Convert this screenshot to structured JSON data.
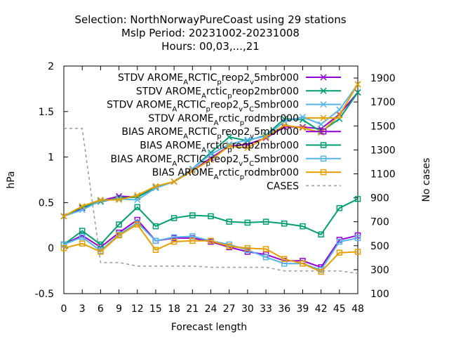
{
  "chart_data": {
    "type": "line",
    "title_lines": [
      "Selection: NorthNorwayPureCoast using    29 stations",
      "Mslp   Period: 20231002-20231008",
      "Hours:  00,03,...,21"
    ],
    "xlabel": "Forecast length",
    "ylabel": "hPa",
    "y2label": "No cases",
    "x": [
      0,
      3,
      6,
      9,
      12,
      15,
      18,
      21,
      24,
      27,
      30,
      33,
      36,
      39,
      42,
      45,
      48
    ],
    "xlim": [
      0,
      48
    ],
    "ylim": [
      -0.5,
      2
    ],
    "y2lim": [
      100,
      2000
    ],
    "yticks": [
      "-0.5",
      "0",
      "0.5",
      "1",
      "1.5",
      "2"
    ],
    "y2ticks": [
      "100",
      "300",
      "500",
      "700",
      "900",
      "1100",
      "1300",
      "1500",
      "1700",
      "1900"
    ],
    "xticks": [
      "0",
      "3",
      "6",
      "9",
      "12",
      "15",
      "18",
      "21",
      "24",
      "27",
      "30",
      "33",
      "36",
      "39",
      "42",
      "45",
      "48"
    ],
    "legend_position": "top-right",
    "series": [
      {
        "name": "STDV AROME_ARCTIC_preop2_v5mbr000",
        "color": "#9400d3",
        "marker": "x",
        "axis": "y1",
        "values": [
          0.35,
          0.44,
          0.52,
          0.57,
          0.56,
          0.67,
          0.73,
          0.85,
          0.99,
          1.12,
          1.14,
          1.21,
          1.33,
          1.33,
          1.31,
          1.47,
          1.71
        ]
      },
      {
        "name": "STDV AROME_Arctic_preop2mbr000",
        "color": "#009e73",
        "marker": "x",
        "axis": "y1",
        "values": [
          0.35,
          0.45,
          0.51,
          0.55,
          0.56,
          0.67,
          0.73,
          0.87,
          1.05,
          1.22,
          1.18,
          1.24,
          1.42,
          1.41,
          1.28,
          1.42,
          1.71
        ]
      },
      {
        "name": "STDV AROME_ARCTIC_preop2_v5_CSmbr000",
        "color": "#56b4e9",
        "marker": "x",
        "axis": "y1",
        "values": [
          0.35,
          0.42,
          0.52,
          0.54,
          0.53,
          0.66,
          0.73,
          0.87,
          1.03,
          1.14,
          1.19,
          1.23,
          1.39,
          1.44,
          1.36,
          1.52,
          1.8
        ]
      },
      {
        "name": "STDV AROME_Arctic_prodmbr000",
        "color": "#e69f00",
        "marker": "x",
        "axis": "y1",
        "values": [
          0.35,
          0.46,
          0.53,
          0.53,
          0.58,
          0.68,
          0.73,
          0.85,
          0.97,
          1.12,
          1.1,
          1.22,
          1.35,
          1.32,
          1.27,
          1.46,
          1.8
        ]
      },
      {
        "name": "BIAS AROME_ARCTIC_preop2_v5mbr000",
        "color": "#9400d3",
        "marker": "square",
        "axis": "y1",
        "values": [
          0.04,
          0.14,
          0.01,
          0.17,
          0.31,
          0.08,
          0.11,
          0.11,
          0.07,
          0.01,
          -0.04,
          -0.07,
          -0.14,
          -0.14,
          -0.21,
          0.09,
          0.14
        ]
      },
      {
        "name": "BIAS AROME_Arctic_preop2mbr000",
        "color": "#009e73",
        "marker": "square",
        "axis": "y1",
        "values": [
          0.04,
          0.19,
          0.04,
          0.26,
          0.45,
          0.24,
          0.33,
          0.36,
          0.35,
          0.29,
          0.28,
          0.29,
          0.27,
          0.24,
          0.15,
          0.44,
          0.54
        ]
      },
      {
        "name": "BIAS AROME_ARCTIC_preop2_v5_CSmbr000",
        "color": "#56b4e9",
        "marker": "square",
        "axis": "y1",
        "values": [
          0.04,
          0.12,
          -0.03,
          0.15,
          0.28,
          0.08,
          0.12,
          0.13,
          0.08,
          0.04,
          -0.02,
          -0.1,
          -0.17,
          -0.17,
          -0.24,
          0.07,
          0.11
        ]
      },
      {
        "name": "BIAS AROME_Arctic_prodmbr000",
        "color": "#e69f00",
        "marker": "square",
        "axis": "y1",
        "values": [
          0.0,
          0.05,
          -0.04,
          0.14,
          0.26,
          -0.02,
          0.07,
          0.08,
          0.08,
          0.02,
          0.0,
          -0.01,
          -0.12,
          -0.17,
          -0.26,
          -0.05,
          -0.04
        ]
      },
      {
        "name": "CASES",
        "color": "#999999",
        "marker": "none",
        "dash": true,
        "axis": "y2",
        "values": [
          1480,
          1480,
          360,
          360,
          330,
          330,
          330,
          330,
          320,
          320,
          320,
          320,
          290,
          290,
          290,
          290,
          270
        ]
      }
    ]
  },
  "legend_labels": [
    {
      "main": "STDV AROME",
      "subs": [
        [
          "A",
          "RCTIC"
        ],
        [
          "p",
          "reop2"
        ],
        [
          "v",
          "5mbr000"
        ]
      ]
    },
    {
      "main": "STDV AROME",
      "subs": [
        [
          "A",
          "rctic"
        ],
        [
          "p",
          "reop2mbr000"
        ]
      ]
    },
    {
      "main": "STDV AROME",
      "subs": [
        [
          "A",
          "RCTIC"
        ],
        [
          "p",
          "reop2"
        ],
        [
          "v",
          "5"
        ],
        [
          "C",
          "Smbr000"
        ]
      ]
    },
    {
      "main": "STDV AROME",
      "subs": [
        [
          "A",
          "rctic"
        ],
        [
          "p",
          "rodmbr000"
        ]
      ]
    },
    {
      "main": "BIAS AROME",
      "subs": [
        [
          "A",
          "RCTIC"
        ],
        [
          "p",
          "reop2"
        ],
        [
          "v",
          "5mbr000"
        ]
      ]
    },
    {
      "main": "BIAS AROME",
      "subs": [
        [
          "A",
          "rctic"
        ],
        [
          "p",
          "reop2mbr000"
        ]
      ]
    },
    {
      "main": "BIAS AROME",
      "subs": [
        [
          "A",
          "RCTIC"
        ],
        [
          "p",
          "reop2"
        ],
        [
          "v",
          "5"
        ],
        [
          "C",
          "Smbr000"
        ]
      ]
    },
    {
      "main": "BIAS AROME",
      "subs": [
        [
          "A",
          "rctic"
        ],
        [
          "p",
          "rodmbr000"
        ]
      ]
    },
    {
      "main": "CASES",
      "subs": []
    }
  ]
}
